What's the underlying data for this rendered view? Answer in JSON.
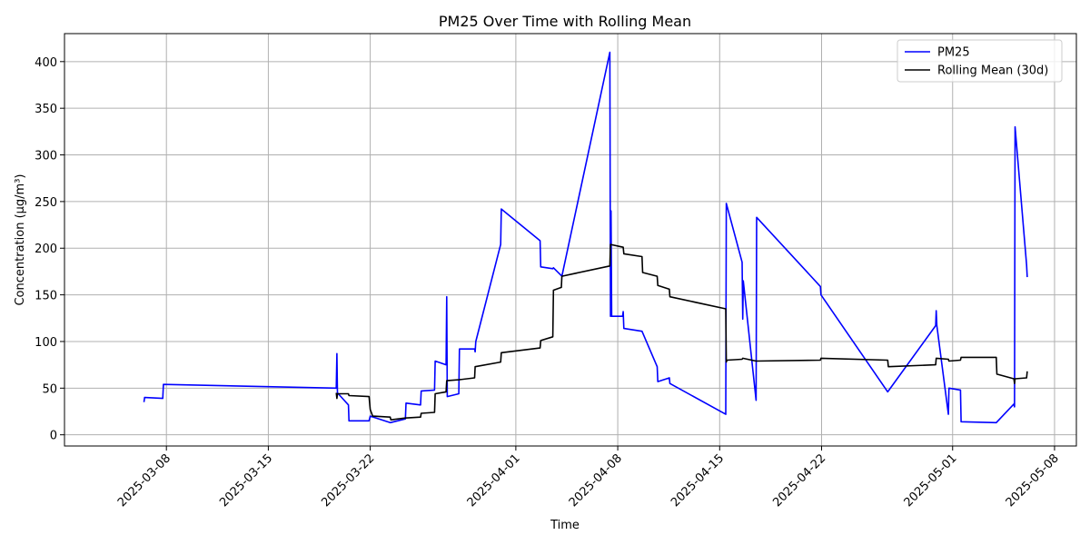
{
  "chart_data": {
    "type": "line",
    "title": "PM25 Over Time with Rolling Mean",
    "xlabel": "Time",
    "ylabel": "Concentration (µg/m³)",
    "xlim": [
      "2025-03-01T00:00",
      "2025-05-09T12:00"
    ],
    "ylim": [
      -12,
      430
    ],
    "xticks": [
      "2025-03-08",
      "2025-03-15",
      "2025-03-22",
      "2025-04-01",
      "2025-04-08",
      "2025-04-15",
      "2025-04-22",
      "2025-05-01",
      "2025-05-08"
    ],
    "yticks": [
      0,
      50,
      100,
      150,
      200,
      250,
      300,
      350,
      400
    ],
    "grid": true,
    "legend": {
      "position": "top-right",
      "entries": [
        "PM25",
        "Rolling Mean (30d)"
      ]
    },
    "series": [
      {
        "name": "PM25",
        "color": "#0000ff",
        "points": [
          [
            "2025-03-06T11:00",
            35
          ],
          [
            "2025-03-06T12:00",
            40
          ],
          [
            "2025-03-07T18:00",
            39
          ],
          [
            "2025-03-07T19:00",
            54
          ],
          [
            "2025-03-19T16:00",
            50
          ],
          [
            "2025-03-19T17:00",
            87
          ],
          [
            "2025-03-19T18:00",
            45
          ],
          [
            "2025-03-20T12:00",
            32
          ],
          [
            "2025-03-20T13:00",
            15
          ],
          [
            "2025-03-21T22:00",
            15
          ],
          [
            "2025-03-22T00:00",
            20
          ],
          [
            "2025-03-23T09:00",
            13
          ],
          [
            "2025-03-24T10:00",
            17
          ],
          [
            "2025-03-24T11:00",
            34
          ],
          [
            "2025-03-25T11:00",
            32
          ],
          [
            "2025-03-25T12:00",
            47
          ],
          [
            "2025-03-26T10:00",
            48
          ],
          [
            "2025-03-26T11:00",
            79
          ],
          [
            "2025-03-27T05:00",
            75
          ],
          [
            "2025-03-27T06:00",
            148
          ],
          [
            "2025-03-27T07:00",
            41
          ],
          [
            "2025-03-28T02:00",
            44
          ],
          [
            "2025-03-28T03:00",
            92
          ],
          [
            "2025-03-29T04:00",
            92
          ],
          [
            "2025-03-29T05:00",
            89
          ],
          [
            "2025-03-29T06:00",
            100
          ],
          [
            "2025-03-30T23:00",
            204
          ],
          [
            "2025-03-31T00:00",
            242
          ],
          [
            "2025-04-02T16:00",
            208
          ],
          [
            "2025-04-02T17:00",
            180
          ],
          [
            "2025-04-03T13:00",
            178
          ],
          [
            "2025-04-03T14:00",
            179
          ],
          [
            "2025-04-04T04:00",
            170
          ],
          [
            "2025-04-07T11:00",
            410
          ],
          [
            "2025-04-07T12:00",
            127
          ],
          [
            "2025-04-07T13:00",
            240
          ],
          [
            "2025-04-07T14:00",
            127
          ],
          [
            "2025-04-08T08:00",
            127
          ],
          [
            "2025-04-08T09:00",
            132
          ],
          [
            "2025-04-08T10:00",
            114
          ],
          [
            "2025-04-09T16:00",
            111
          ],
          [
            "2025-04-10T17:00",
            73
          ],
          [
            "2025-04-10T18:00",
            57
          ],
          [
            "2025-04-11T13:00",
            61
          ],
          [
            "2025-04-11T14:00",
            55
          ],
          [
            "2025-04-15T10:00",
            22
          ],
          [
            "2025-04-15T11:00",
            248
          ],
          [
            "2025-04-16T13:00",
            185
          ],
          [
            "2025-04-16T14:00",
            124
          ],
          [
            "2025-04-16T15:00",
            165
          ],
          [
            "2025-04-17T12:00",
            37
          ],
          [
            "2025-04-17T13:00",
            233
          ],
          [
            "2025-04-21T22:00",
            159
          ],
          [
            "2025-04-21T23:00",
            150
          ],
          [
            "2025-04-26T13:00",
            46
          ],
          [
            "2025-04-29T20:00",
            117
          ],
          [
            "2025-04-29T21:00",
            133
          ],
          [
            "2025-04-29T22:00",
            117
          ],
          [
            "2025-04-30T17:00",
            22
          ],
          [
            "2025-04-30T18:00",
            50
          ],
          [
            "2025-05-01T13:00",
            48
          ],
          [
            "2025-05-01T14:00",
            14
          ],
          [
            "2025-05-04T00:00",
            13
          ],
          [
            "2025-05-05T05:00",
            33
          ],
          [
            "2025-05-05T06:00",
            30
          ],
          [
            "2025-05-05T07:00",
            330
          ],
          [
            "2025-05-06T02:00",
            182
          ],
          [
            "2025-05-06T03:00",
            169
          ]
        ]
      },
      {
        "name": "Rolling Mean (30d)",
        "color": "#000000",
        "points": [
          [
            "2025-03-19T16:00",
            45
          ],
          [
            "2025-03-19T17:00",
            39
          ],
          [
            "2025-03-19T18:00",
            44
          ],
          [
            "2025-03-20T12:00",
            44
          ],
          [
            "2025-03-20T13:00",
            42
          ],
          [
            "2025-03-21T22:00",
            41
          ],
          [
            "2025-03-22T00:00",
            27
          ],
          [
            "2025-03-22T04:00",
            20
          ],
          [
            "2025-03-23T09:00",
            19
          ],
          [
            "2025-03-23T10:00",
            16
          ],
          [
            "2025-03-24T10:00",
            18
          ],
          [
            "2025-03-25T11:00",
            19
          ],
          [
            "2025-03-25T12:00",
            23
          ],
          [
            "2025-03-26T10:00",
            24
          ],
          [
            "2025-03-26T11:00",
            44
          ],
          [
            "2025-03-27T05:00",
            46
          ],
          [
            "2025-03-27T06:00",
            58
          ],
          [
            "2025-03-28T02:00",
            59
          ],
          [
            "2025-03-29T04:00",
            61
          ],
          [
            "2025-03-29T05:00",
            73
          ],
          [
            "2025-03-30T23:00",
            78
          ],
          [
            "2025-03-31T00:00",
            88
          ],
          [
            "2025-04-02T16:00",
            93
          ],
          [
            "2025-04-02T17:00",
            101
          ],
          [
            "2025-04-03T13:00",
            105
          ],
          [
            "2025-04-03T14:00",
            155
          ],
          [
            "2025-04-04T03:00",
            158
          ],
          [
            "2025-04-04T04:00",
            170
          ],
          [
            "2025-04-07T11:00",
            181
          ],
          [
            "2025-04-07T12:00",
            204
          ],
          [
            "2025-04-08T09:00",
            201
          ],
          [
            "2025-04-08T10:00",
            194
          ],
          [
            "2025-04-09T16:00",
            191
          ],
          [
            "2025-04-09T17:00",
            174
          ],
          [
            "2025-04-10T17:00",
            170
          ],
          [
            "2025-04-10T18:00",
            160
          ],
          [
            "2025-04-11T13:00",
            156
          ],
          [
            "2025-04-11T14:00",
            148
          ],
          [
            "2025-04-15T10:00",
            135
          ],
          [
            "2025-04-15T11:00",
            78
          ],
          [
            "2025-04-15T12:00",
            80
          ],
          [
            "2025-04-16T13:00",
            81
          ],
          [
            "2025-04-16T14:00",
            82
          ],
          [
            "2025-04-17T12:00",
            79
          ],
          [
            "2025-04-21T22:00",
            80
          ],
          [
            "2025-04-21T23:00",
            82
          ],
          [
            "2025-04-26T13:00",
            80
          ],
          [
            "2025-04-26T14:00",
            73
          ],
          [
            "2025-04-29T20:00",
            75
          ],
          [
            "2025-04-29T21:00",
            82
          ],
          [
            "2025-04-30T17:00",
            81
          ],
          [
            "2025-04-30T18:00",
            79
          ],
          [
            "2025-05-01T13:00",
            80
          ],
          [
            "2025-05-01T14:00",
            83
          ],
          [
            "2025-05-04T00:00",
            83
          ],
          [
            "2025-05-04T01:00",
            65
          ],
          [
            "2025-05-05T05:00",
            60
          ],
          [
            "2025-05-05T06:00",
            55
          ],
          [
            "2025-05-05T07:00",
            60
          ],
          [
            "2025-05-06T02:00",
            61
          ],
          [
            "2025-05-06T03:00",
            68
          ]
        ]
      }
    ]
  }
}
